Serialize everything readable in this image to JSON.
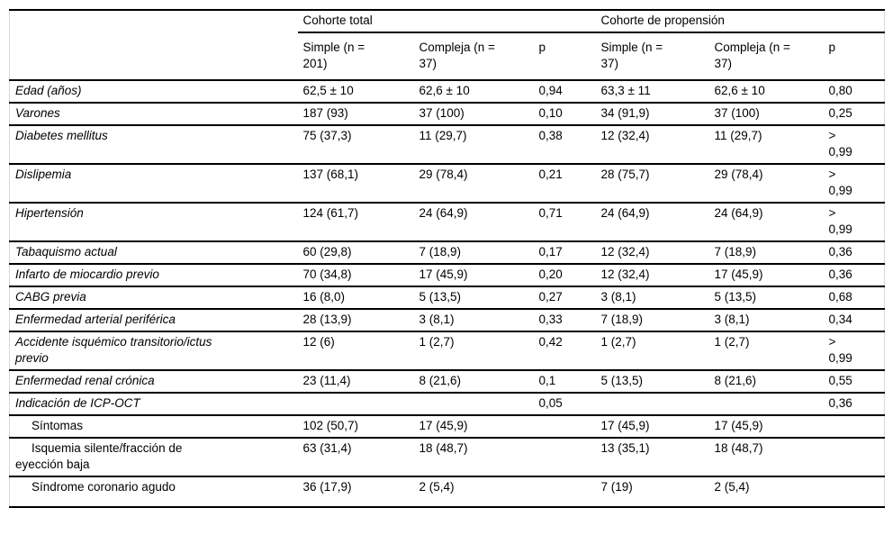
{
  "table": {
    "col_groups": [
      {
        "label": "Cohorte total"
      },
      {
        "label": "Cohorte de propensión"
      }
    ],
    "sub_headers": [
      "Simple (n =\n201)",
      "Compleja (n =\n37)",
      "p",
      "Simple (n =\n37)",
      "Compleja (n =\n37)",
      "p"
    ],
    "rows": [
      {
        "label": "Edad (años)",
        "style": "italic",
        "values": [
          "62,5 ± 10",
          "62,6 ± 10",
          "0,94",
          "63,3 ± 11",
          "62,6 ± 10",
          "0,80"
        ]
      },
      {
        "label": "Varones",
        "style": "italic",
        "values": [
          "187 (93)",
          "37 (100)",
          "0,10",
          "34 (91,9)",
          "37 (100)",
          "0,25"
        ]
      },
      {
        "label": "Diabetes mellitus",
        "style": "italic",
        "values": [
          "75 (37,3)",
          "11 (29,7)",
          "0,38",
          "12 (32,4)",
          "11 (29,7)",
          ">\n0,99"
        ]
      },
      {
        "label": "Dislipemia",
        "style": "italic",
        "values": [
          "137 (68,1)",
          "29 (78,4)",
          "0,21",
          "28 (75,7)",
          "29 (78,4)",
          ">\n0,99"
        ]
      },
      {
        "label": "Hipertensión",
        "style": "italic",
        "values": [
          "124 (61,7)",
          "24 (64,9)",
          "0,71",
          "24 (64,9)",
          "24 (64,9)",
          ">\n0,99"
        ]
      },
      {
        "label": "Tabaquismo actual",
        "style": "italic",
        "values": [
          "60 (29,8)",
          "7 (18,9)",
          "0,17",
          "12 (32,4)",
          "7 (18,9)",
          "0,36"
        ]
      },
      {
        "label": "Infarto de miocardio previo",
        "style": "italic",
        "values": [
          "70 (34,8)",
          "17 (45,9)",
          "0,20",
          "12 (32,4)",
          "17 (45,9)",
          "0,36"
        ]
      },
      {
        "label": "CABG previa",
        "style": "italic",
        "values": [
          "16 (8,0)",
          "5 (13,5)",
          "0,27",
          "3 (8,1)",
          "5 (13,5)",
          "0,68"
        ]
      },
      {
        "label": "Enfermedad arterial periférica",
        "style": "italic",
        "values": [
          "28 (13,9)",
          "3 (8,1)",
          "0,33",
          "7 (18,9)",
          "3 (8,1)",
          "0,34"
        ]
      },
      {
        "label": "Accidente isquémico transitorio/ictus\nprevio",
        "style": "italic",
        "values": [
          "12 (6)",
          "1 (2,7)",
          "0,42",
          "1 (2,7)",
          "1 (2,7)",
          ">\n0,99"
        ]
      },
      {
        "label": "Enfermedad renal crónica",
        "style": "italic",
        "values": [
          "23 (11,4)",
          "8 (21,6)",
          "0,1",
          "5 (13,5)",
          "8 (21,6)",
          "0,55"
        ]
      },
      {
        "label": "Indicación de ICP-OCT",
        "style": "italic",
        "values": [
          "",
          "",
          "0,05",
          "",
          "",
          "0,36"
        ]
      },
      {
        "label": "Síntomas",
        "style": "indent",
        "values": [
          "102 (50,7)",
          "17 (45,9)",
          "",
          "17 (45,9)",
          "17 (45,9)",
          ""
        ]
      },
      {
        "label": "Isquemia silente/fracción de\neyección baja",
        "style": "indent",
        "values": [
          "63 (31,4)",
          "18 (48,7)",
          "",
          "13 (35,1)",
          "18 (48,7)",
          ""
        ]
      },
      {
        "label": "Síndrome coronario agudo",
        "style": "indent",
        "values": [
          "36 (17,9)",
          "2 (5,4)",
          "",
          "7 (19)",
          "2 (5,4)",
          ""
        ]
      }
    ]
  }
}
